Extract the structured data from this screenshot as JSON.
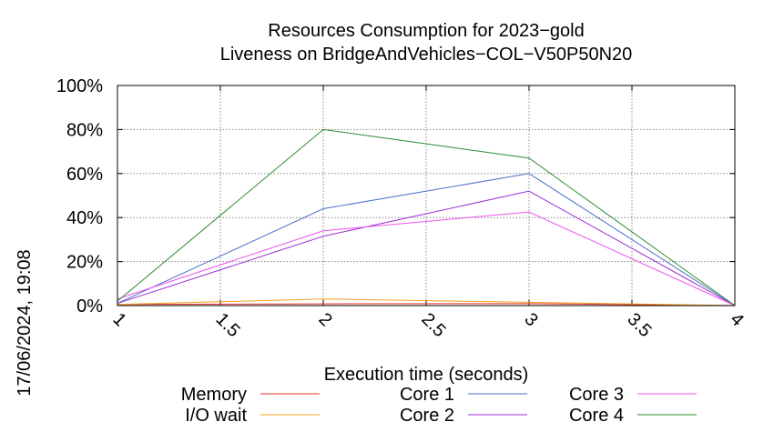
{
  "side_stamp": "17/06/2024, 19:08",
  "chart_data": {
    "type": "line",
    "title_lines": [
      "Resources Consumption for 2023−gold",
      "Liveness on BridgeAndVehicles−COL−V50P50N20"
    ],
    "xlabel": "Execution time (seconds)",
    "ylabel": "",
    "xlim": [
      1,
      4
    ],
    "ylim": [
      0,
      100
    ],
    "x_ticks": [
      1,
      1.5,
      2,
      2.5,
      3,
      3.5,
      4
    ],
    "x_tick_labels": [
      "1",
      "1.5",
      "2",
      "2.5",
      "3",
      "3.5",
      "4"
    ],
    "y_ticks": [
      0,
      20,
      40,
      60,
      80,
      100
    ],
    "y_tick_labels": [
      "0%",
      "20%",
      "40%",
      "60%",
      "80%",
      "100%"
    ],
    "grid": true,
    "legend_placement": "bottom",
    "x": [
      1,
      2,
      3,
      4
    ],
    "series": [
      {
        "name": "Memory",
        "color": "#e8302a",
        "values": [
          0.5,
          0.8,
          0.9,
          0
        ]
      },
      {
        "name": "I/O wait",
        "color": "#f0a020",
        "values": [
          0.5,
          3,
          1.5,
          0
        ]
      },
      {
        "name": "Core 1",
        "color": "#4a72c8",
        "values": [
          1,
          44,
          60,
          0
        ]
      },
      {
        "name": "Core 2",
        "color": "#9b30d8",
        "values": [
          1,
          31.5,
          52,
          0
        ]
      },
      {
        "name": "Core 3",
        "color": "#f050f0",
        "values": [
          3,
          34,
          42.5,
          0
        ]
      },
      {
        "name": "Core 4",
        "color": "#2e8b2e",
        "values": [
          2,
          80,
          67,
          0
        ]
      }
    ]
  }
}
